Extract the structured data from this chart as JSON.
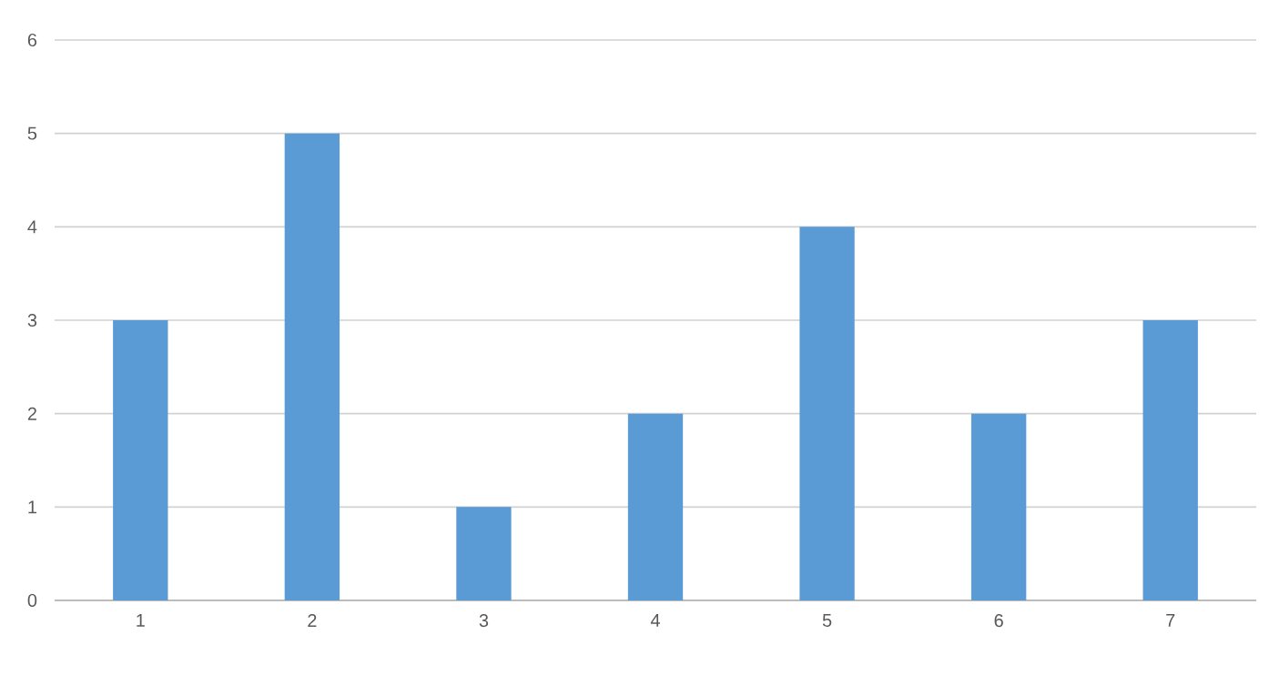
{
  "chart_data": {
    "type": "bar",
    "categories": [
      "1",
      "2",
      "3",
      "4",
      "5",
      "6",
      "7"
    ],
    "values": [
      3,
      5,
      1,
      2,
      4,
      2,
      3
    ],
    "color": "#5b9bd5",
    "ylim": [
      0,
      6
    ],
    "yticks": [
      0,
      1,
      2,
      3,
      4,
      5,
      6
    ],
    "grid": "y"
  }
}
